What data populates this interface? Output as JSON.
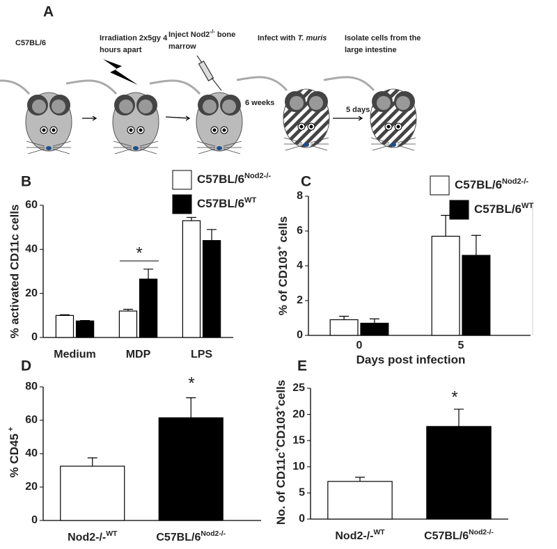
{
  "panel_a": {
    "label": "A",
    "steps": {
      "strain": "C57BL/6",
      "irradiation": [
        "Irradiation 2x5gy 4",
        "hours apart"
      ],
      "inject": [
        "Inject Nod2",
        "-/-",
        " bone"
      ],
      "inject_line2": "marrow",
      "infect": "Infect with ",
      "infect_species": "T. muris",
      "isolate": [
        "Isolate cells from the",
        "large intestine"
      ],
      "interval_1": "6 weeks",
      "interval_2": "5 days"
    }
  },
  "chart_data": [
    {
      "type": "bar",
      "panel": "B",
      "ylabel": "% activated CD11c cells",
      "categories": [
        "Medium",
        "MDP",
        "LPS"
      ],
      "series": [
        {
          "name": [
            "C57BL/6",
            "Nod2-/-"
          ],
          "color": "#ffffff",
          "values": [
            10,
            12,
            53
          ],
          "errors": [
            0.3,
            0.8,
            1.5
          ]
        },
        {
          "name": [
            "C57BL/6",
            "WT"
          ],
          "color": "#000000",
          "values": [
            7.5,
            26.5,
            44
          ],
          "errors": [
            0.2,
            4.5,
            5
          ]
        }
      ],
      "ylim": [
        0,
        60
      ],
      "yticks": [
        0,
        20,
        40,
        60
      ],
      "annotation": "*"
    },
    {
      "type": "bar",
      "panel": "C",
      "ylabel": [
        "% of CD103",
        "+",
        " cells"
      ],
      "xlabel": "Days post infection",
      "categories": [
        "0",
        "5"
      ],
      "series": [
        {
          "name": [
            "C57BL/6",
            "Nod2-/-"
          ],
          "color": "#ffffff",
          "values": [
            0.9,
            5.7
          ],
          "errors": [
            0.2,
            1.2
          ]
        },
        {
          "name": [
            "C57BL/6",
            "WT"
          ],
          "color": "#000000",
          "values": [
            0.7,
            4.6
          ],
          "errors": [
            0.25,
            1.15
          ]
        }
      ],
      "ylim": [
        0,
        8
      ],
      "yticks": [
        0,
        2,
        4,
        6,
        8
      ]
    },
    {
      "type": "bar",
      "panel": "D",
      "ylabel": [
        "% CD45",
        " +"
      ],
      "categories": [
        [
          "Nod2-/-",
          "WT"
        ],
        [
          "C57BL/6",
          "Nod2-/-"
        ]
      ],
      "series": [
        {
          "colors": [
            "#ffffff",
            "#000000"
          ],
          "values": [
            32.5,
            61.5
          ],
          "errors": [
            5,
            12
          ]
        }
      ],
      "ylim": [
        0,
        80
      ],
      "yticks": [
        0,
        20,
        40,
        60,
        80
      ],
      "annotation": "*"
    },
    {
      "type": "bar",
      "panel": "E",
      "ylabel": [
        "No. of  CD11c",
        "+",
        "CD103",
        "+",
        "cells"
      ],
      "categories": [
        [
          "Nod2-/-",
          "WT"
        ],
        [
          "C57BL/6",
          "Nod2-/-"
        ]
      ],
      "series": [
        {
          "colors": [
            "#ffffff",
            "#000000"
          ],
          "values": [
            7.2,
            17.7
          ],
          "errors": [
            0.8,
            3.3
          ]
        }
      ],
      "ylim": [
        0,
        25
      ],
      "yticks": [
        0,
        5,
        10,
        15,
        20,
        25
      ],
      "annotation": "*"
    }
  ]
}
